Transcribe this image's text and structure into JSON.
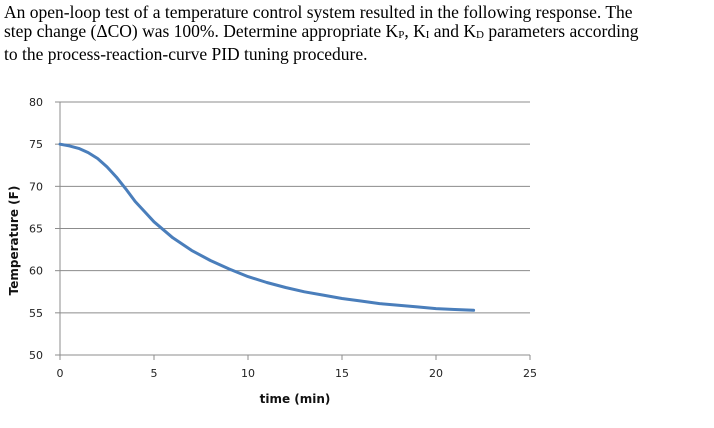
{
  "problem": {
    "line1": "An open-loop test of a temperature control system resulted in the following response.  The",
    "line2a": "step change (ΔCO) was 100%.  Determine appropriate K",
    "sub_p": "P",
    "sep1": ", K",
    "sub_i": "I",
    "sep2": " and K",
    "sub_d": "D",
    "line2b": " parameters according",
    "line3": "to the process-reaction-curve PID tuning procedure."
  },
  "chart_data": {
    "type": "line",
    "title": "",
    "xlabel": "time (min)",
    "ylabel": "Temperature (F)",
    "xlim": [
      0,
      25
    ],
    "ylim": [
      50,
      80
    ],
    "x_ticks": [
      "0",
      "5",
      "10",
      "15",
      "20",
      "25"
    ],
    "y_ticks": [
      "50",
      "55",
      "60",
      "65",
      "70",
      "75",
      "80"
    ],
    "grid": "horizontal",
    "line_color": "#4a7ebb",
    "series": [
      {
        "x": [
          0,
          0.5,
          1,
          1.5,
          2,
          2.5,
          3,
          3.5,
          4,
          4.5,
          5,
          6,
          7,
          8,
          9,
          10,
          11,
          12,
          13,
          14,
          15,
          16,
          17,
          18,
          19,
          20,
          21,
          22
        ],
        "values": [
          75.0,
          74.8,
          74.5,
          74.0,
          73.3,
          72.3,
          71.1,
          69.7,
          68.2,
          67.0,
          65.8,
          63.9,
          62.4,
          61.2,
          60.2,
          59.3,
          58.6,
          58.0,
          57.5,
          57.1,
          56.7,
          56.4,
          56.1,
          55.9,
          55.7,
          55.5,
          55.4,
          55.3
        ]
      }
    ]
  }
}
